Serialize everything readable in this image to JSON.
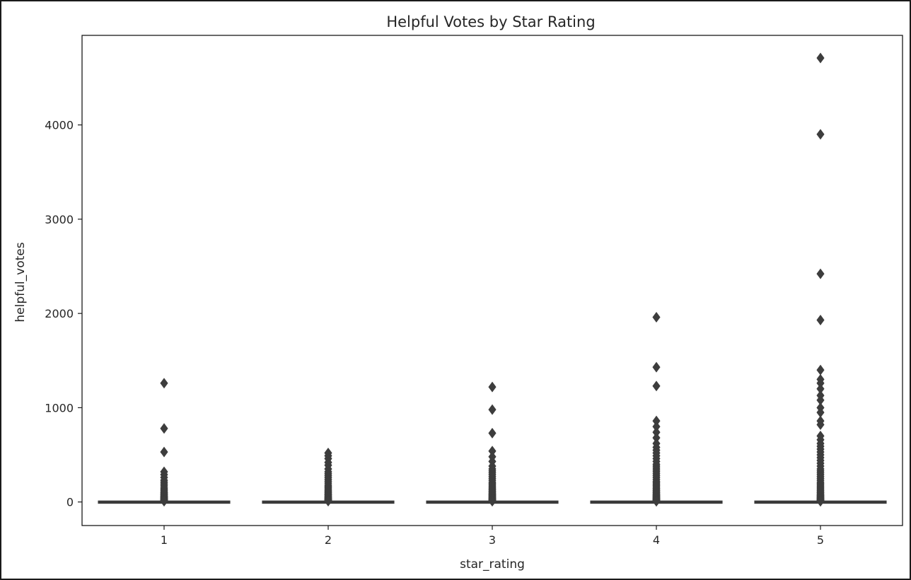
{
  "chart_data": {
    "type": "box",
    "title": "Helpful Votes by Star Rating",
    "xlabel": "star_rating",
    "ylabel": "helpful_votes",
    "categories": [
      "1",
      "2",
      "3",
      "4",
      "5"
    ],
    "yticks": [
      0,
      1000,
      2000,
      3000,
      4000
    ],
    "ylim": [
      -250,
      4950
    ],
    "grid": false,
    "colors": {
      "box": "#3a3a3a",
      "outlier": "#3d3d3d",
      "axes": "#1a1a1a",
      "text": "#262626"
    },
    "series": [
      {
        "category": "1",
        "q1": 0,
        "median": 0,
        "q3": 2,
        "whisker_low": 0,
        "whisker_high": 5,
        "outliers": [
          1260,
          780,
          530,
          320,
          290,
          260,
          230,
          210,
          190,
          170,
          150,
          135,
          120,
          105,
          95,
          85,
          75,
          65,
          58,
          50,
          44,
          38,
          32,
          27,
          22,
          18,
          14,
          11,
          8
        ]
      },
      {
        "category": "2",
        "q1": 0,
        "median": 0,
        "q3": 2,
        "whisker_low": 0,
        "whisker_high": 5,
        "outliers": [
          520,
          490,
          460,
          420,
          390,
          350,
          320,
          300,
          280,
          260,
          240,
          220,
          200,
          180,
          165,
          150,
          135,
          120,
          108,
          96,
          85,
          75,
          65,
          56,
          48,
          40,
          33,
          27,
          21,
          16,
          12,
          9
        ]
      },
      {
        "category": "3",
        "q1": 0,
        "median": 0,
        "q3": 2,
        "whisker_low": 0,
        "whisker_high": 5,
        "outliers": [
          1220,
          980,
          730,
          540,
          480,
          430,
          380,
          350,
          330,
          310,
          290,
          270,
          250,
          230,
          210,
          195,
          180,
          165,
          150,
          138,
          126,
          115,
          104,
          94,
          85,
          76,
          68,
          60,
          53,
          46,
          40,
          34,
          29,
          24,
          19,
          15,
          11,
          8
        ]
      },
      {
        "category": "4",
        "q1": 0,
        "median": 0,
        "q3": 2,
        "whisker_low": 0,
        "whisker_high": 5,
        "outliers": [
          1960,
          1430,
          1230,
          860,
          800,
          740,
          680,
          620,
          580,
          550,
          520,
          490,
          460,
          430,
          400,
          380,
          360,
          340,
          320,
          300,
          280,
          260,
          240,
          220,
          205,
          190,
          175,
          160,
          145,
          132,
          120,
          108,
          97,
          87,
          78,
          69,
          61,
          53,
          46,
          40,
          34,
          28,
          23,
          18,
          14,
          10,
          7
        ]
      },
      {
        "category": "5",
        "q1": 0,
        "median": 0,
        "q3": 2,
        "whisker_low": 0,
        "whisker_high": 5,
        "outliers": [
          4710,
          3900,
          2420,
          1930,
          1400,
          1300,
          1260,
          1200,
          1130,
          1080,
          1000,
          950,
          860,
          820,
          700,
          660,
          620,
          590,
          560,
          530,
          500,
          470,
          440,
          410,
          380,
          350,
          330,
          310,
          290,
          270,
          250,
          230,
          210,
          195,
          180,
          165,
          150,
          136,
          122,
          110,
          99,
          88,
          78,
          69,
          61,
          53,
          46,
          40,
          34,
          28,
          23,
          18,
          14,
          10,
          7
        ]
      }
    ]
  }
}
